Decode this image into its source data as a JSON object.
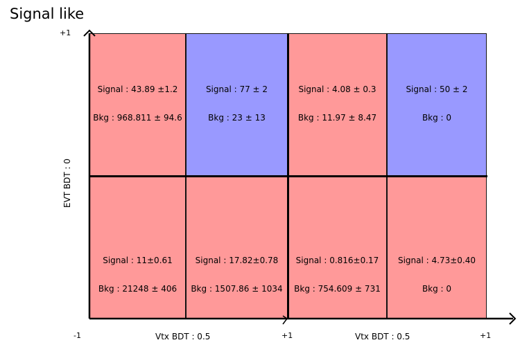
{
  "title": "Signal like",
  "colors": {
    "bkg_dominated": "#ff9999",
    "sig_dominated": "#9999ff",
    "border": "#000000"
  },
  "y_axis": {
    "label": "EVT BDT : 0",
    "top_tick": "+1"
  },
  "x_axis": {
    "left_tick": "-1",
    "mid_tick": "+1",
    "right_tick": "+1",
    "label_left": "Vtx BDT : 0.5",
    "label_right": "Vtx BDT : 0.5"
  },
  "cells": [
    {
      "row": 0,
      "col": 0,
      "fill": "red",
      "signal": "Signal : 43.89 ±1.2",
      "bkg": "Bkg : 968.811 ± 94.6"
    },
    {
      "row": 0,
      "col": 1,
      "fill": "blue",
      "signal": "Signal : 77 ± 2",
      "bkg": "Bkg : 23 ± 13"
    },
    {
      "row": 0,
      "col": 2,
      "fill": "red",
      "signal": "Signal : 4.08 ± 0.3",
      "bkg": "Bkg : 11.97 ± 8.47"
    },
    {
      "row": 0,
      "col": 3,
      "fill": "blue",
      "signal": "Signal : 50 ± 2",
      "bkg": "Bkg : 0"
    },
    {
      "row": 1,
      "col": 0,
      "fill": "red",
      "signal": "Signal : 11±0.61",
      "bkg": "Bkg : 21248 ± 406"
    },
    {
      "row": 1,
      "col": 1,
      "fill": "red",
      "signal": "Signal : 17.82±0.78",
      "bkg": "Bkg : 1507.86 ± 1034"
    },
    {
      "row": 1,
      "col": 2,
      "fill": "red",
      "signal": "Signal : 0.816±0.17",
      "bkg": "Bkg : 754.609 ± 731"
    },
    {
      "row": 1,
      "col": 3,
      "fill": "red",
      "signal": "Signal : 4.73±0.40",
      "bkg": "Bkg : 0"
    }
  ]
}
